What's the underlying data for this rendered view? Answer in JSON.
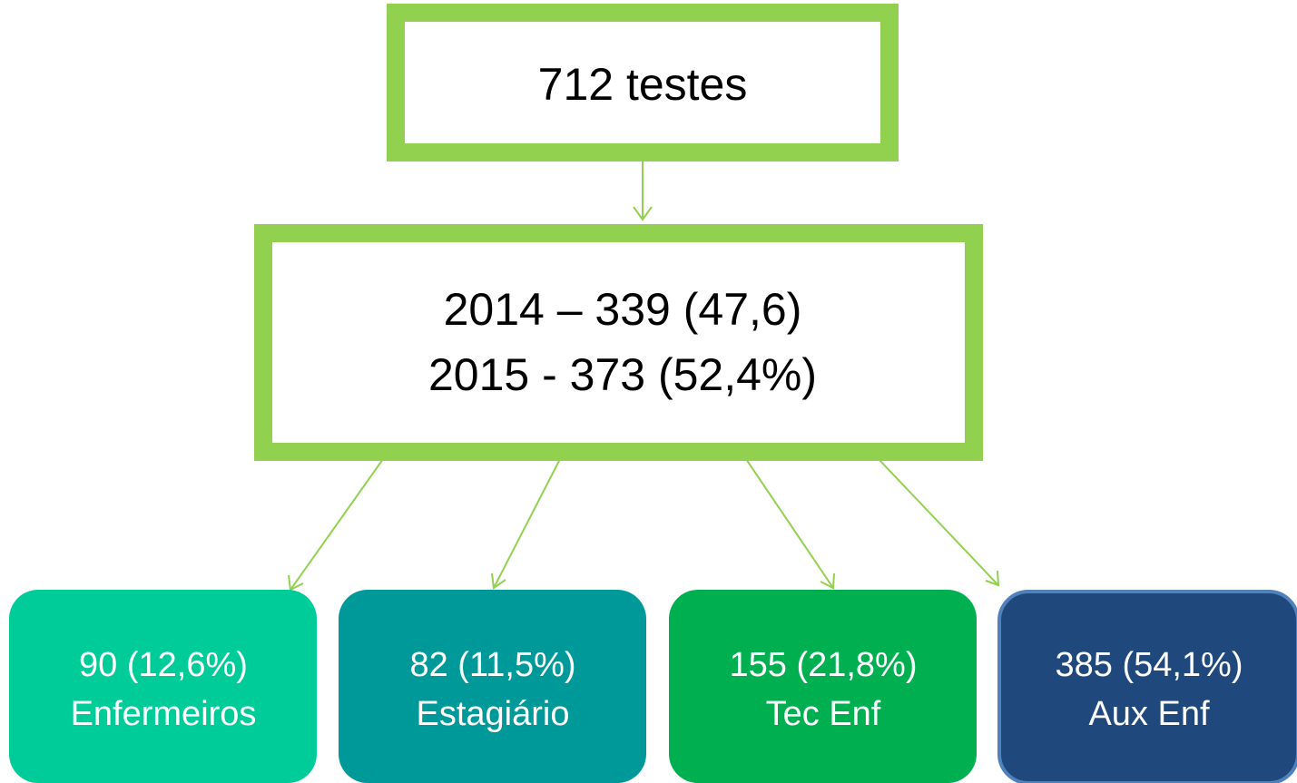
{
  "nodes": [
    {
      "label": "712 testes"
    },
    {
      "lines": [
        "2014 – 339 (47,6)",
        "2015 - 373 (52,4%)"
      ]
    },
    {
      "lines": [
        "90 (12,6%)",
        "Enfermeiros"
      ]
    },
    {
      "lines": [
        "82 (11,5%)",
        "Estagiário"
      ]
    },
    {
      "lines": [
        "155 (21,8%)",
        "Tec Enf"
      ]
    },
    {
      "lines": [
        "385 (54,1%)",
        "Aux Enf"
      ]
    }
  ]
}
